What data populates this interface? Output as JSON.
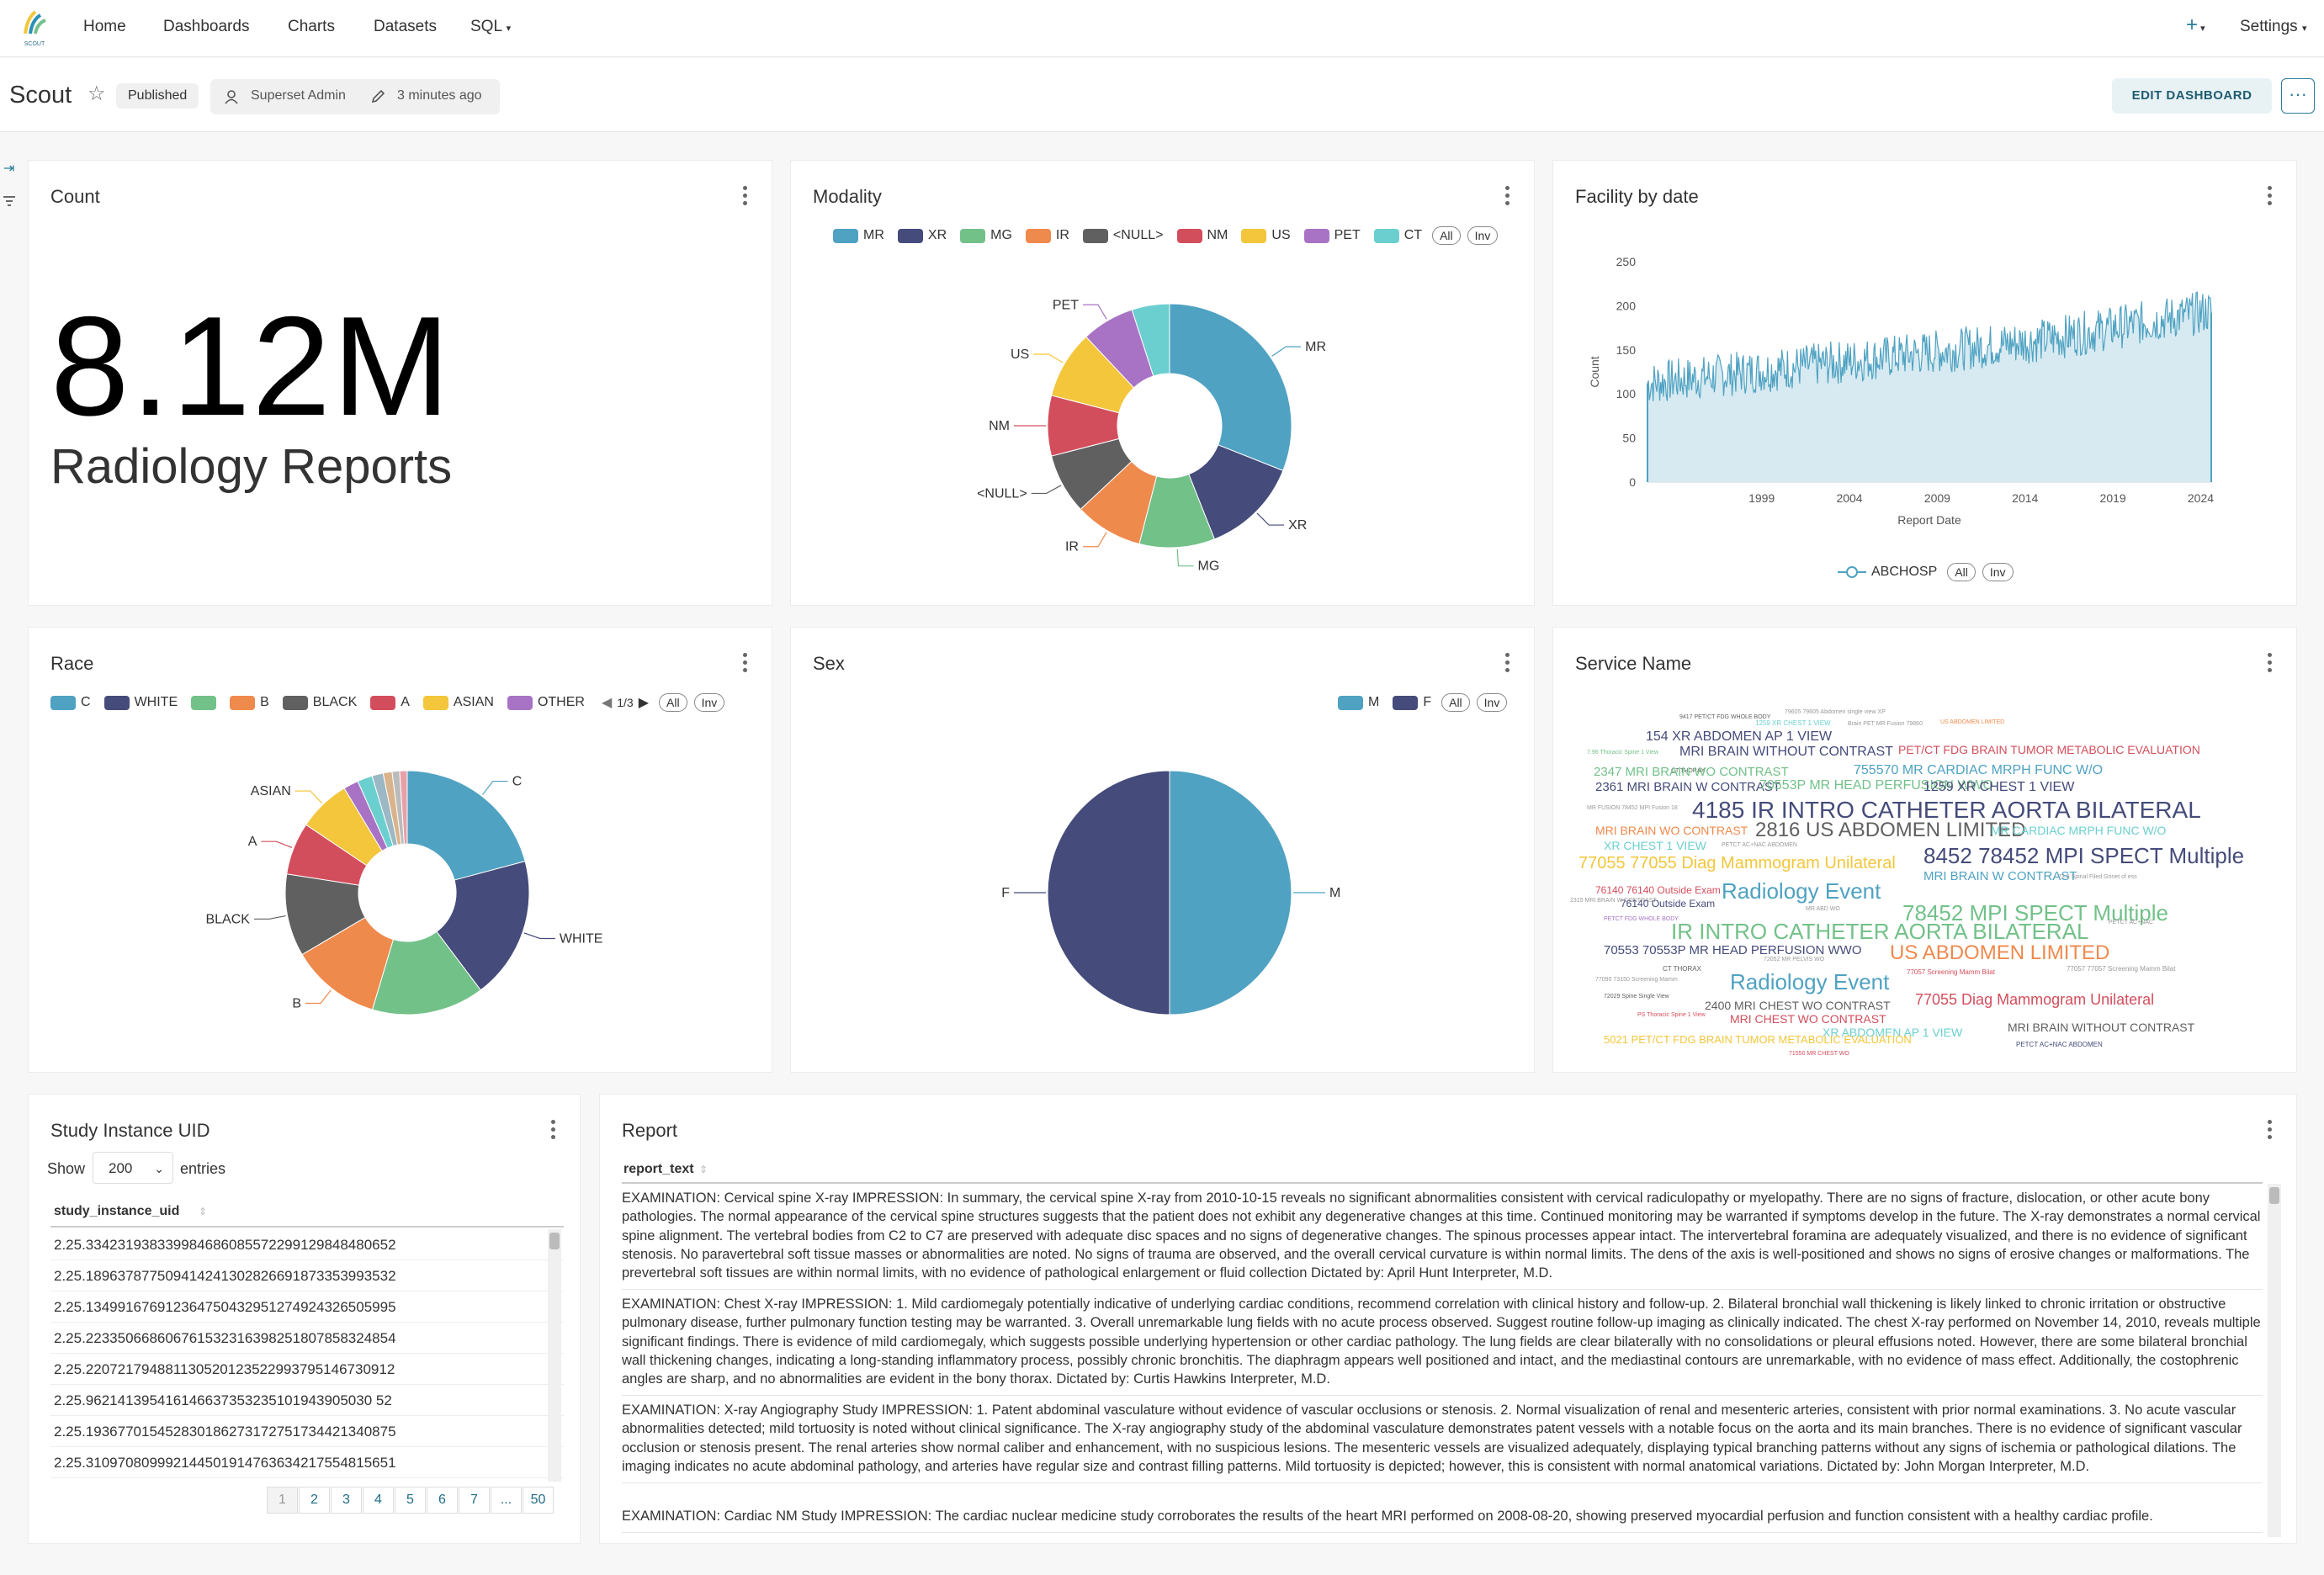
{
  "nav": {
    "home": "Home",
    "dashboards": "Dashboards",
    "charts": "Charts",
    "datasets": "Datasets",
    "sql": "SQL",
    "settings": "Settings",
    "logo_text": "SCOUT"
  },
  "header": {
    "title": "Scout",
    "status": "Published",
    "owner": "Superset Admin",
    "modified": "3 minutes ago",
    "edit": "EDIT DASHBOARD"
  },
  "count": {
    "title": "Count",
    "value": "8.12M",
    "subheader": "Radiology Reports"
  },
  "modality": {
    "title": "Modality",
    "legend": [
      {
        "label": "MR",
        "color": "#4fa2c2"
      },
      {
        "label": "XR",
        "color": "#454b7a"
      },
      {
        "label": "MG",
        "color": "#72c189"
      },
      {
        "label": "IR",
        "color": "#ef8a4d"
      },
      {
        "label": "<NULL>",
        "color": "#606060"
      },
      {
        "label": "NM",
        "color": "#d34e5c"
      },
      {
        "label": "US",
        "color": "#f3c63c"
      },
      {
        "label": "PET",
        "color": "#a873c4"
      },
      {
        "label": "CT",
        "color": "#6ccfcf"
      }
    ],
    "all": "All",
    "inv": "Inv"
  },
  "facility": {
    "title": "Facility by date",
    "legend": "ABCHOSP",
    "all": "All",
    "inv": "Inv"
  },
  "race": {
    "title": "Race",
    "legend": [
      {
        "label": "C",
        "color": "#4fa2c2"
      },
      {
        "label": "WHITE",
        "color": "#454b7a"
      },
      {
        "label": "",
        "color": "#72c189"
      },
      {
        "label": "B",
        "color": "#ef8a4d"
      },
      {
        "label": "BLACK",
        "color": "#606060"
      },
      {
        "label": "A",
        "color": "#d34e5c"
      },
      {
        "label": "ASIAN",
        "color": "#f3c63c"
      },
      {
        "label": "OTHER",
        "color": "#a873c4"
      }
    ],
    "page": "1/3",
    "all": "All",
    "inv": "Inv"
  },
  "sex": {
    "title": "Sex",
    "legend": [
      {
        "label": "M",
        "color": "#4fa2c2"
      },
      {
        "label": "F",
        "color": "#454b7a"
      }
    ],
    "all": "All",
    "inv": "Inv"
  },
  "service": {
    "title": "Service Name"
  },
  "study": {
    "title": "Study Instance UID",
    "show": "Show",
    "entries": "entries",
    "page_size": "200",
    "column": "study_instance_uid",
    "rows": [
      "2.25.334231938339984686085572299129848480652",
      "2.25.189637877509414241302826691873353993532",
      "2.25.134991676912364750432951274924326505995",
      "2.25.223350668606761532316398251807858324854",
      "2.25.220721794881130520123522993795146730912",
      "2.25.962141395416146637353235101943905030 52",
      "2.25.193677015452830186273172751734421340875",
      "2.25.310970809992144501914763634217554815651"
    ],
    "pages": [
      "1",
      "2",
      "3",
      "4",
      "5",
      "6",
      "7",
      "...",
      "50"
    ]
  },
  "report": {
    "title": "Report",
    "column": "report_text",
    "rows": [
      "EXAMINATION: Cervical spine X-ray IMPRESSION: In summary, the cervical spine X-ray from 2010-10-15 reveals no significant abnormalities consistent with cervical radiculopathy or myelopathy. There are no signs of fracture, dislocation, or other acute bony pathologies. The normal appearance of the cervical spine structures suggests that the patient does not exhibit any degenerative changes at this time. Continued monitoring may be warranted if symptoms develop in the future. The X-ray demonstrates a normal cervical spine alignment. The vertebral bodies from C2 to C7 are preserved with adequate disc spaces and no signs of degenerative changes. The spinous processes appear intact. The intervertebral foramina are adequately visualized, and there is no evidence of significant stenosis. No paravertebral soft tissue masses or abnormalities are noted. No signs of trauma are observed, and the overall cervical curvature is within normal limits. The dens of the axis is well-positioned and shows no signs of erosive changes or malformations. The prevertebral soft tissues are within normal limits, with no evidence of pathological enlargement or fluid collection Dictated by: April Hunt Interpreter, M.D.",
      "EXAMINATION: Chest X-ray IMPRESSION: 1. Mild cardiomegaly potentially indicative of underlying cardiac conditions, recommend correlation with clinical history and follow-up. 2. Bilateral bronchial wall thickening is likely linked to chronic irritation or obstructive pulmonary disease, further pulmonary function testing may be warranted. 3. Overall unremarkable lung fields with no acute process observed. Suggest routine follow-up imaging as clinically indicated. The chest X-ray performed on November 14, 2010, reveals multiple significant findings. There is evidence of mild cardiomegaly, which suggests possible underlying hypertension or other cardiac pathology. The lung fields are clear bilaterally with no consolidations or pleural effusions noted. However, there are some bilateral bronchial wall thickening changes, indicating a long-standing inflammatory process, possibly chronic bronchitis. The diaphragm appears well positioned and intact, and the mediastinal contours are unremarkable, with no evidence of mass effect. Additionally, the costophrenic angles are sharp, and no abnormalities are evident in the bony thorax. Dictated by: Curtis Hawkins Interpreter, M.D.",
      "EXAMINATION: X-ray Angiography Study IMPRESSION: 1. Patent abdominal vasculature without evidence of vascular occlusions or stenosis. 2. Normal visualization of renal and mesenteric arteries, consistent with prior normal examinations. 3. No acute vascular abnormalities detected; mild tortuosity is noted without clinical significance. The X-ray angiography study of the abdominal vasculature demonstrates patent vessels with a notable focus on the aorta and its main branches. There is no evidence of significant vascular occlusion or stenosis present. The renal arteries show normal caliber and enhancement, with no suspicious lesions. The mesenteric vessels are visualized adequately, displaying typical branching patterns without any signs of ischemia or pathological dilations. The imaging indicates no acute abdominal pathology, and arteries have regular size and contrast filling patterns. Mild tortuosity is depicted; however, this is consistent with normal anatomical variations. Dictated by: John Morgan Interpreter, M.D.",
      "EXAMINATION: Cardiac NM Study IMPRESSION: The cardiac nuclear medicine study corroborates the results of the heart MRI performed on 2008-08-20, showing preserved myocardial perfusion and function consistent with a healthy cardiac profile."
    ]
  }
}
